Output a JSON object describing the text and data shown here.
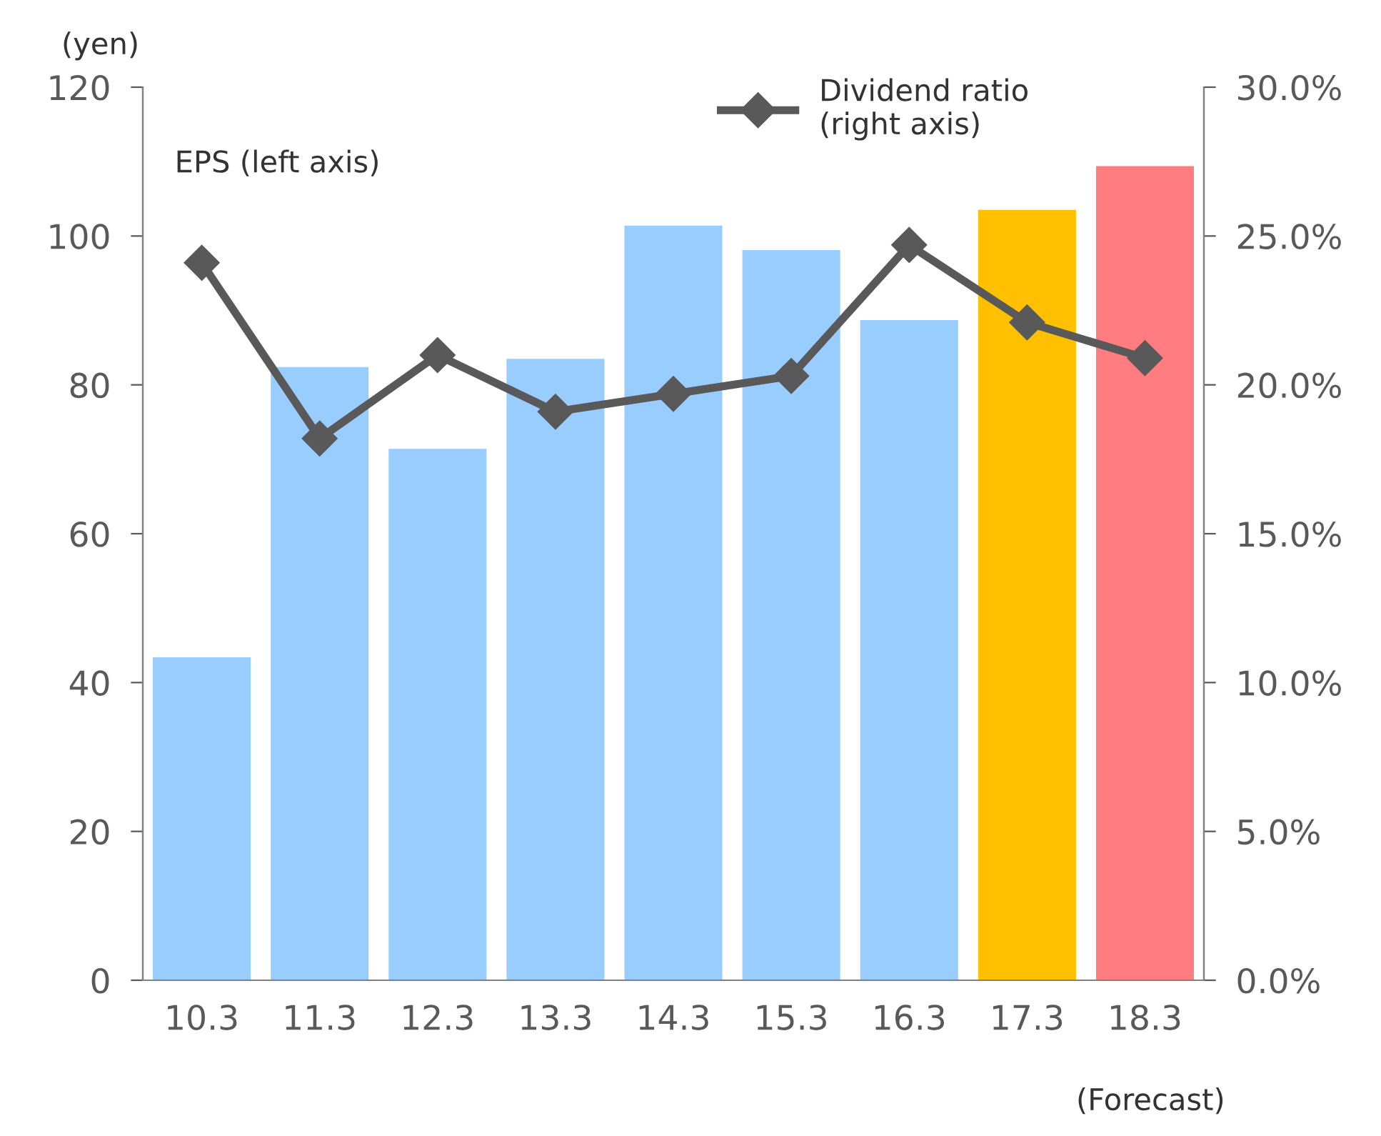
{
  "chart_data": {
    "type": "bar",
    "categories": [
      "10.3",
      "11.3",
      "12.3",
      "13.3",
      "14.3",
      "15.3",
      "16.3",
      "17.3",
      "18.3"
    ],
    "ylabel": "(yen)",
    "series": [
      {
        "colors": [
          "#99ccff",
          "#99ccff",
          "#99ccff",
          "#99ccff",
          "#99ccff",
          "#99ccff",
          "#99ccff",
          "#ffc000",
          "#ff7c80"
        ],
        "values": [
          43.4,
          82.4,
          71.4,
          83.5,
          101.4,
          98.1,
          88.7,
          103.5,
          109.4
        ]
      },
      {
        "type": "line",
        "axis": "y2",
        "name": "Dividend ratio\n(right axis)",
        "color": "#595959",
        "values": [
          24.1,
          18.2,
          21.0,
          19.1,
          19.7,
          20.3,
          24.7,
          22.1,
          20.9
        ]
      }
    ],
    "ylim": [
      0,
      120
    ],
    "yticks": [
      0,
      20,
      40,
      60,
      80,
      100,
      120
    ],
    "y2lim": [
      0,
      30
    ],
    "y2ticks": [
      {
        "value": 0,
        "label": "0.0%"
      },
      {
        "value": 5,
        "label": "5.0%"
      },
      {
        "value": 10,
        "label": "10.0%"
      },
      {
        "value": 15,
        "label": "15.0%"
      },
      {
        "value": 20,
        "label": "20.0%"
      },
      {
        "value": 25,
        "label": "25.0%"
      },
      {
        "value": 30,
        "label": "30.0%"
      }
    ],
    "annotations": [
      "EPS (left axis)",
      "(Forecast)"
    ],
    "marker": "diamond",
    "line_style": "solid",
    "legend": "top",
    "grid": false
  }
}
